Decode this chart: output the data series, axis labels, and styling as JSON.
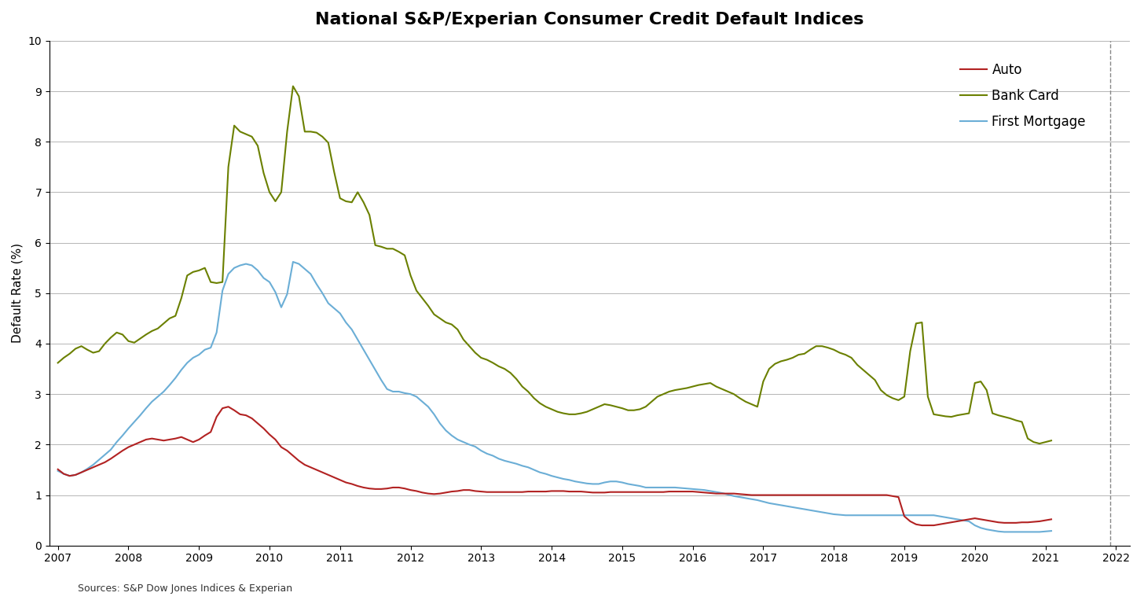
{
  "title": "National S&P/Experian Consumer Credit Default Indices",
  "ylabel": "Default Rate (%)",
  "source_text": "Sources: S&P Dow Jones Indices & Experian",
  "ylim": [
    0,
    10
  ],
  "yticks": [
    0,
    1,
    2,
    3,
    4,
    5,
    6,
    7,
    8,
    9,
    10
  ],
  "background_color": "#ffffff",
  "auto_color": "#b22222",
  "bank_card_color": "#6b8000",
  "first_mortgage_color": "#6baed6",
  "linewidth": 1.5,
  "x_start_year": 2007,
  "x_end_year": 2022,
  "dashed_line_x": 2021.92,
  "source_fontsize": 9,
  "title_fontsize": 16,
  "auto": [
    1.51,
    1.42,
    1.38,
    1.4,
    1.45,
    1.5,
    1.55,
    1.6,
    1.65,
    1.72,
    1.8,
    1.88,
    1.95,
    2.0,
    2.05,
    2.1,
    2.12,
    2.1,
    2.08,
    2.1,
    2.12,
    2.15,
    2.1,
    2.05,
    2.1,
    2.18,
    2.25,
    2.55,
    2.72,
    2.75,
    2.68,
    2.6,
    2.58,
    2.52,
    2.42,
    2.32,
    2.2,
    2.1,
    1.95,
    1.88,
    1.78,
    1.68,
    1.6,
    1.55,
    1.5,
    1.45,
    1.4,
    1.35,
    1.3,
    1.25,
    1.22,
    1.18,
    1.15,
    1.13,
    1.12,
    1.12,
    1.13,
    1.15,
    1.15,
    1.13,
    1.1,
    1.08,
    1.05,
    1.03,
    1.02,
    1.03,
    1.05,
    1.07,
    1.08,
    1.1,
    1.1,
    1.08,
    1.07,
    1.06,
    1.06,
    1.06,
    1.06,
    1.06,
    1.06,
    1.06,
    1.07,
    1.07,
    1.07,
    1.07,
    1.08,
    1.08,
    1.08,
    1.07,
    1.07,
    1.07,
    1.06,
    1.05,
    1.05,
    1.05,
    1.06,
    1.06,
    1.06,
    1.06,
    1.06,
    1.06,
    1.06,
    1.06,
    1.06,
    1.06,
    1.07,
    1.07,
    1.07,
    1.07,
    1.07,
    1.06,
    1.05,
    1.04,
    1.03,
    1.03,
    1.03,
    1.03,
    1.02,
    1.01,
    1.0,
    1.0,
    1.0,
    1.0,
    1.0,
    1.0,
    1.0,
    1.0,
    1.0,
    1.0,
    1.0,
    1.0,
    1.0,
    1.0,
    1.0,
    1.0,
    1.0,
    1.0,
    1.0,
    1.0,
    1.0,
    1.0,
    1.0,
    1.0,
    0.98,
    0.96,
    0.58,
    0.48,
    0.42,
    0.4,
    0.4,
    0.4,
    0.42,
    0.44,
    0.46,
    0.48,
    0.5,
    0.52,
    0.54,
    0.52,
    0.5,
    0.48,
    0.46,
    0.45,
    0.45,
    0.45,
    0.46,
    0.46,
    0.47,
    0.48,
    0.5,
    0.52
  ],
  "bank_card": [
    3.62,
    3.72,
    3.8,
    3.9,
    3.95,
    3.88,
    3.82,
    3.85,
    4.0,
    4.12,
    4.22,
    4.18,
    4.05,
    4.02,
    4.1,
    4.18,
    4.25,
    4.3,
    4.4,
    4.5,
    4.55,
    4.9,
    5.35,
    5.42,
    5.45,
    5.5,
    5.22,
    5.2,
    5.22,
    7.5,
    8.32,
    8.2,
    8.15,
    8.1,
    7.92,
    7.38,
    7.0,
    6.82,
    7.0,
    8.2,
    9.1,
    8.9,
    8.2,
    8.2,
    8.18,
    8.1,
    7.98,
    7.4,
    6.88,
    6.82,
    6.8,
    7.0,
    6.8,
    6.55,
    5.95,
    5.92,
    5.88,
    5.88,
    5.82,
    5.75,
    5.35,
    5.05,
    4.9,
    4.75,
    4.58,
    4.5,
    4.42,
    4.38,
    4.28,
    4.08,
    3.95,
    3.82,
    3.72,
    3.68,
    3.62,
    3.55,
    3.5,
    3.42,
    3.3,
    3.15,
    3.05,
    2.92,
    2.82,
    2.75,
    2.7,
    2.65,
    2.62,
    2.6,
    2.6,
    2.62,
    2.65,
    2.7,
    2.75,
    2.8,
    2.78,
    2.75,
    2.72,
    2.68,
    2.68,
    2.7,
    2.75,
    2.85,
    2.95,
    3.0,
    3.05,
    3.08,
    3.1,
    3.12,
    3.15,
    3.18,
    3.2,
    3.22,
    3.15,
    3.1,
    3.05,
    3.0,
    2.92,
    2.85,
    2.8,
    2.75,
    3.25,
    3.5,
    3.6,
    3.65,
    3.68,
    3.72,
    3.78,
    3.8,
    3.88,
    3.95,
    3.95,
    3.92,
    3.88,
    3.82,
    3.78,
    3.72,
    3.58,
    3.48,
    3.38,
    3.28,
    3.08,
    2.98,
    2.92,
    2.88,
    2.95,
    3.85,
    4.4,
    4.42,
    2.95,
    2.6,
    2.58,
    2.56,
    2.55,
    2.58,
    2.6,
    2.62,
    3.22,
    3.25,
    3.08,
    2.62,
    2.58,
    2.55,
    2.52,
    2.48,
    2.45,
    2.12,
    2.05,
    2.02,
    2.05,
    2.08
  ],
  "first_mortgage": [
    1.48,
    1.42,
    1.38,
    1.4,
    1.45,
    1.52,
    1.6,
    1.7,
    1.8,
    1.9,
    2.05,
    2.18,
    2.32,
    2.45,
    2.58,
    2.72,
    2.85,
    2.95,
    3.05,
    3.18,
    3.32,
    3.48,
    3.62,
    3.72,
    3.78,
    3.88,
    3.92,
    4.22,
    5.05,
    5.38,
    5.5,
    5.55,
    5.58,
    5.55,
    5.45,
    5.3,
    5.22,
    5.02,
    4.72,
    4.98,
    5.62,
    5.58,
    5.48,
    5.38,
    5.18,
    5.0,
    4.8,
    4.7,
    4.6,
    4.42,
    4.28,
    4.08,
    3.88,
    3.68,
    3.48,
    3.28,
    3.1,
    3.05,
    3.05,
    3.02,
    3.0,
    2.95,
    2.85,
    2.75,
    2.6,
    2.42,
    2.28,
    2.18,
    2.1,
    2.05,
    2.0,
    1.96,
    1.88,
    1.82,
    1.78,
    1.72,
    1.68,
    1.65,
    1.62,
    1.58,
    1.55,
    1.5,
    1.45,
    1.42,
    1.38,
    1.35,
    1.32,
    1.3,
    1.27,
    1.25,
    1.23,
    1.22,
    1.22,
    1.25,
    1.27,
    1.27,
    1.25,
    1.22,
    1.2,
    1.18,
    1.15,
    1.15,
    1.15,
    1.15,
    1.15,
    1.15,
    1.14,
    1.13,
    1.12,
    1.11,
    1.1,
    1.08,
    1.06,
    1.04,
    1.01,
    0.98,
    0.96,
    0.94,
    0.92,
    0.9,
    0.87,
    0.84,
    0.82,
    0.8,
    0.78,
    0.76,
    0.74,
    0.72,
    0.7,
    0.68,
    0.66,
    0.64,
    0.62,
    0.61,
    0.6,
    0.6,
    0.6,
    0.6,
    0.6,
    0.6,
    0.6,
    0.6,
    0.6,
    0.6,
    0.6,
    0.6,
    0.6,
    0.6,
    0.6,
    0.6,
    0.58,
    0.56,
    0.54,
    0.52,
    0.5,
    0.48,
    0.4,
    0.35,
    0.32,
    0.3,
    0.28,
    0.27,
    0.27,
    0.27,
    0.27,
    0.27,
    0.27,
    0.27,
    0.28,
    0.29
  ]
}
